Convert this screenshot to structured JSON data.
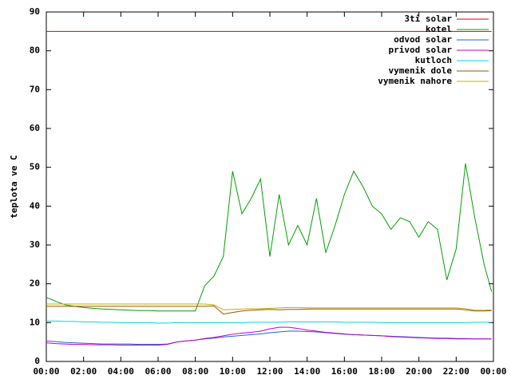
{
  "chart_data": {
    "type": "line",
    "y_label": "teplota ve C",
    "x": [
      0,
      0.5,
      1,
      1.5,
      2,
      2.5,
      3,
      3.5,
      4,
      4.5,
      5,
      5.5,
      6,
      6.5,
      7,
      7.5,
      8,
      8.5,
      9,
      9.5,
      10,
      10.5,
      11,
      11.5,
      12,
      12.5,
      13,
      13.5,
      14,
      14.5,
      15,
      15.5,
      16,
      16.5,
      17,
      17.5,
      18,
      18.5,
      19,
      19.5,
      20,
      20.5,
      21,
      21.5,
      22,
      22.5,
      23,
      23.5,
      23.9
    ],
    "xlim": [
      0,
      24
    ],
    "xticks": [
      {
        "value": 0,
        "label": "00:00"
      },
      {
        "value": 2,
        "label": "02:00"
      },
      {
        "value": 4,
        "label": "04:00"
      },
      {
        "value": 6,
        "label": "06:00"
      },
      {
        "value": 8,
        "label": "08:00"
      },
      {
        "value": 10,
        "label": "10:00"
      },
      {
        "value": 12,
        "label": "12:00"
      },
      {
        "value": 14,
        "label": "14:00"
      },
      {
        "value": 16,
        "label": "16:00"
      },
      {
        "value": 18,
        "label": "18:00"
      },
      {
        "value": 20,
        "label": "20:00"
      },
      {
        "value": 22,
        "label": "22:00"
      },
      {
        "value": 24,
        "label": "00:00"
      }
    ],
    "ylim": [
      0,
      90
    ],
    "yticks": [
      0,
      10,
      20,
      30,
      40,
      50,
      60,
      70,
      80,
      90
    ],
    "grid": false,
    "legend": "top-right",
    "series": [
      {
        "name": "3ti solar",
        "color": "#e00000",
        "values": [
          85,
          85,
          85,
          85,
          85,
          85,
          85,
          85,
          85,
          85,
          85,
          85,
          85,
          85,
          85,
          85,
          85,
          85,
          85,
          85,
          85,
          85,
          85,
          85,
          85,
          85,
          85,
          85,
          85,
          85,
          85,
          85,
          85,
          85,
          85,
          85,
          85,
          85,
          85,
          85,
          85,
          85,
          85,
          85,
          85,
          85,
          85,
          85,
          85
        ]
      },
      {
        "name": "kotel",
        "color": "#00a000",
        "values": [
          16.5,
          15.5,
          14.6,
          14.2,
          13.9,
          13.7,
          13.5,
          13.4,
          13.3,
          13.2,
          13.1,
          13.1,
          13,
          13,
          13,
          13,
          13,
          19.5,
          22,
          27,
          49,
          38,
          42,
          47,
          27,
          43,
          30,
          35,
          30,
          42,
          28,
          35,
          43,
          49,
          45,
          40,
          38,
          34,
          37,
          36,
          32,
          36,
          34,
          21,
          29,
          51,
          37,
          25,
          18
        ]
      },
      {
        "name": "odvod solar",
        "color": "#2060e0",
        "values": [
          5.3,
          5.1,
          4.9,
          4.8,
          4.7,
          4.6,
          4.5,
          4.5,
          4.5,
          4.5,
          4.4,
          4.4,
          4.4,
          4.5,
          5,
          5.3,
          5.5,
          5.8,
          6,
          6.3,
          6.5,
          6.7,
          6.9,
          7.1,
          7.4,
          7.6,
          7.8,
          7.8,
          7.7,
          7.6,
          7.4,
          7.2,
          7,
          6.9,
          6.8,
          6.7,
          6.6,
          6.5,
          6.4,
          6.3,
          6.2,
          6.1,
          6,
          6,
          5.9,
          5.9,
          5.8,
          5.8,
          5.8
        ]
      },
      {
        "name": "privod solar",
        "color": "#c000c0",
        "values": [
          4.8,
          4.6,
          4.5,
          4.4,
          4.4,
          4.3,
          4.3,
          4.3,
          4.2,
          4.2,
          4.2,
          4.2,
          4.2,
          4.4,
          5,
          5.3,
          5.5,
          5.9,
          6.2,
          6.6,
          7,
          7.3,
          7.5,
          7.8,
          8.4,
          8.8,
          8.8,
          8.5,
          8.1,
          7.8,
          7.5,
          7.3,
          7.1,
          6.9,
          6.8,
          6.7,
          6.6,
          6.4,
          6.3,
          6.2,
          6.1,
          6,
          5.9,
          5.9,
          5.8,
          5.8,
          5.8,
          5.8,
          5.8
        ]
      },
      {
        "name": "kutloch",
        "color": "#00d8d8",
        "values": [
          10.4,
          10.4,
          10.3,
          10.3,
          10.2,
          10.2,
          10.1,
          10.1,
          10,
          10,
          10,
          10,
          9.9,
          9.9,
          10,
          10,
          10,
          10,
          10,
          10,
          10,
          10,
          10.1,
          10.1,
          10.1,
          10.1,
          10.2,
          10.2,
          10.2,
          10.2,
          10.2,
          10.2,
          10.1,
          10.1,
          10.1,
          10.1,
          10,
          10,
          10,
          10,
          10,
          10,
          10,
          10,
          10,
          10,
          10.1,
          10.1,
          10.1
        ]
      },
      {
        "name": "vymenik dole",
        "color": "#a05000",
        "values": [
          14.2,
          14.2,
          14.2,
          14.2,
          14.2,
          14.2,
          14.2,
          14.2,
          14.2,
          14.2,
          14.2,
          14.2,
          14.2,
          14.2,
          14.2,
          14.2,
          14.2,
          14.2,
          14.3,
          12.2,
          12.6,
          13,
          13.2,
          13.3,
          13.4,
          13.3,
          13.4,
          13.4,
          13.5,
          13.5,
          13.5,
          13.5,
          13.5,
          13.5,
          13.5,
          13.5,
          13.5,
          13.5,
          13.5,
          13.5,
          13.5,
          13.5,
          13.5,
          13.5,
          13.5,
          13.3,
          13,
          13,
          13.1
        ]
      },
      {
        "name": "vymenik nahore",
        "color": "#c0b000",
        "values": [
          14.8,
          14.8,
          14.8,
          14.8,
          14.8,
          14.8,
          14.8,
          14.8,
          14.8,
          14.8,
          14.8,
          14.8,
          14.8,
          14.8,
          14.8,
          14.8,
          14.8,
          14.8,
          14.6,
          13.3,
          13.4,
          13.5,
          13.6,
          13.6,
          13.7,
          13.8,
          13.9,
          13.9,
          13.8,
          13.8,
          13.8,
          13.8,
          13.8,
          13.8,
          13.8,
          13.8,
          13.8,
          13.8,
          13.8,
          13.8,
          13.8,
          13.8,
          13.8,
          13.8,
          13.8,
          13.6,
          13.2,
          13.2,
          13.3
        ]
      }
    ]
  }
}
